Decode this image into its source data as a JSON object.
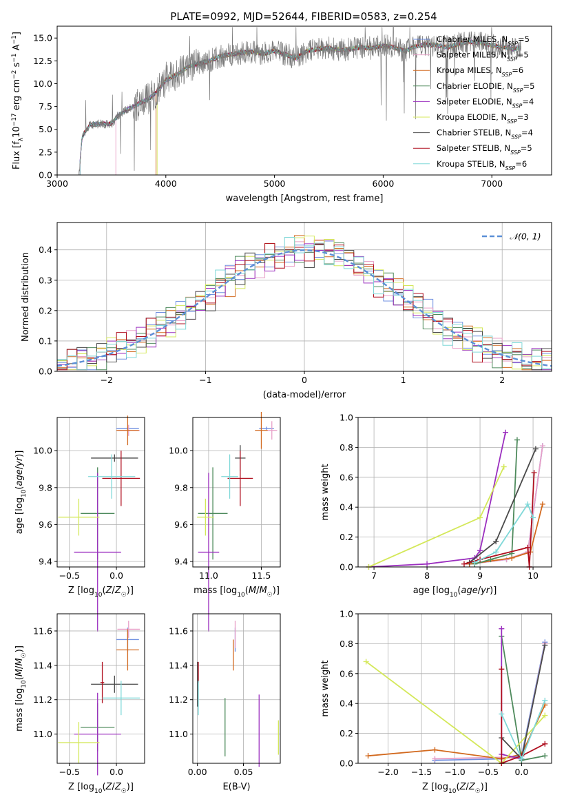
{
  "figure": {
    "title": "PLATE=0992, MJD=52644, FIBERID=0583, z=0.254"
  },
  "series_styles": [
    {
      "name": "Chabrier MILES, N$_{SSP}$=5",
      "color": "#6f8fe0"
    },
    {
      "name": "Salpeter MILES, N$_{SSP}$=5",
      "color": "#e8a0c8"
    },
    {
      "name": "Kroupa MILES, N$_{SSP}$=6",
      "color": "#d2691e"
    },
    {
      "name": "Chabrier ELODIE, N$_{SSP}$=5",
      "color": "#4e8a5c"
    },
    {
      "name": "Salpeter ELODIE, N$_{SSP}$=4",
      "color": "#9b2fbf"
    },
    {
      "name": "Kroupa ELODIE, N$_{SSP}$=3",
      "color": "#d4e85a"
    },
    {
      "name": "Chabrier STELIB, N$_{SSP}$=4",
      "color": "#4a4a4a"
    },
    {
      "name": "Salpeter STELIB, N$_{SSP}$=5",
      "color": "#b01020"
    },
    {
      "name": "Kroupa STELIB, N$_{SSP}$=6",
      "color": "#7fd8d8"
    }
  ],
  "chart_data": [
    {
      "type": "line",
      "title": "PLATE=0992, MJD=52644, FIBERID=0583, z=0.254",
      "xlabel": "wavelength [Angstrom, rest frame]",
      "ylabel": "Flux [f_λ 10^-17 erg cm^-2 s^-1 A^-1]",
      "xlim": [
        3000,
        7550
      ],
      "ylim": [
        0,
        16.3
      ],
      "xticks": [
        "3000",
        "4000",
        "5000",
        "6000",
        "7000"
      ],
      "yticks": [
        "0.0",
        "2.5",
        "5.0",
        "7.5",
        "10.0",
        "12.5",
        "15.0"
      ],
      "legend": "top-right",
      "legend_entries": [
        "Chabrier MILES, N_SSP=5",
        "Salpeter MILES, N_SSP=5",
        "Kroupa MILES, N_SSP=6",
        "Chabrier ELODIE, N_SSP=5",
        "Salpeter ELODIE, N_SSP=4",
        "Kroupa ELODIE, N_SSP=3",
        "Chabrier STELIB, N_SSP=4",
        "Salpeter STELIB, N_SSP=5",
        "Kroupa STELIB, N_SSP=6"
      ],
      "data_x": [
        3200,
        3230,
        3300,
        3400,
        3500,
        3560,
        3650,
        3750,
        3850,
        3950,
        4000,
        4100,
        4200,
        4300,
        4400,
        4500,
        4600,
        4700,
        4800,
        4900,
        5000,
        5100,
        5200,
        5300,
        5400,
        5500,
        5600,
        5700,
        5800,
        5900,
        6000,
        6100,
        6200,
        6300,
        6400,
        6500,
        6600,
        6700,
        6800,
        6900,
        7000,
        7100,
        7200,
        7270
      ],
      "data_y": [
        0,
        4.2,
        5.5,
        5.6,
        5.6,
        6.5,
        7.2,
        7.8,
        8.4,
        9.5,
        10.4,
        11.0,
        11.8,
        12.2,
        12.5,
        13.0,
        13.2,
        13.4,
        13.5,
        13.3,
        13.6,
        13.2,
        12.8,
        13.6,
        13.8,
        13.9,
        13.7,
        13.8,
        14.0,
        13.9,
        14.2,
        14.0,
        13.6,
        14.1,
        14.3,
        14.2,
        14.0,
        14.4,
        14.6,
        14.5,
        14.2,
        14.0,
        13.8,
        14.0
      ],
      "model_starts": [
        3210,
        3540,
        3910,
        3210,
        3210,
        3920,
        3210,
        3210,
        3210
      ]
    },
    {
      "type": "line",
      "xlabel": "(data-model)/error",
      "ylabel": "Normed distribution",
      "xlim": [
        -2.5,
        2.5
      ],
      "ylim": [
        0,
        0.49
      ],
      "xticks": [
        "−2",
        "−1",
        "0",
        "1",
        "2"
      ],
      "yticks": [
        "0.0",
        "0.1",
        "0.2",
        "0.3",
        "0.4"
      ],
      "grid": true,
      "legend": "top-right",
      "legend_entries": [
        "𝒩(0, 1)"
      ],
      "bin_edges_start": -2.5,
      "bin_width": 0.1,
      "histogram_noise": [
        0.02,
        -0.01,
        0.015,
        -0.02,
        0.01,
        0.005,
        -0.015,
        0.02,
        -0.005,
        0.012
      ]
    },
    {
      "type": "scatter",
      "xlabel": "Z [log10(Z/Z☉)]",
      "ylabel": "age  [log10(age/yr)]",
      "xlim": [
        -0.63,
        0.3
      ],
      "ylim": [
        9.37,
        10.18
      ],
      "xticks": [
        "−0.5",
        "0.0"
      ],
      "yticks": [
        "9.4",
        "9.6",
        "9.8",
        "10.0"
      ],
      "points": [
        {
          "series": 0,
          "x": 0.12,
          "y": 10.12,
          "xerr": 0.12,
          "yerr": 0.01
        },
        {
          "series": 1,
          "x": 0.13,
          "y": 10.11,
          "xerr": 0.12,
          "yerr": 0.03
        },
        {
          "series": 2,
          "x": 0.12,
          "y": 10.11,
          "xerr": 0.12,
          "yerr": 0.08
        },
        {
          "series": 3,
          "x": -0.2,
          "y": 9.66,
          "xerr": 0.18,
          "yerr": 0.25
        },
        {
          "series": 4,
          "x": -0.2,
          "y": 9.45,
          "xerr": 0.25,
          "yerr": 0.43
        },
        {
          "series": 5,
          "x": -0.4,
          "y": 9.64,
          "xerr": 0.22,
          "yerr": 0.1
        },
        {
          "series": 6,
          "x": -0.02,
          "y": 9.96,
          "xerr": 0.25,
          "yerr": 0.02
        },
        {
          "series": 7,
          "x": 0.05,
          "y": 9.85,
          "xerr": 0.2,
          "yerr": 0.15
        },
        {
          "series": 8,
          "x": -0.05,
          "y": 9.86,
          "xerr": 0.25,
          "yerr": 0.12
        }
      ]
    },
    {
      "type": "scatter",
      "xlabel": "mass [log10(M/M☉)]",
      "xlim": [
        10.85,
        11.68
      ],
      "ylim": [
        9.37,
        10.18
      ],
      "xticks": [
        "11.0",
        "11.5"
      ],
      "yticks": [
        "9.4",
        "9.6",
        "9.8",
        "10.0"
      ],
      "points": [
        {
          "series": 0,
          "x": 11.55,
          "y": 10.12,
          "xerr": 0.07,
          "yerr": 0.01
        },
        {
          "series": 1,
          "x": 11.6,
          "y": 10.11,
          "xerr": 0.05,
          "yerr": 0.05
        },
        {
          "series": 2,
          "x": 11.5,
          "y": 10.11,
          "xerr": 0.06,
          "yerr": 0.1
        },
        {
          "series": 3,
          "x": 11.04,
          "y": 9.66,
          "xerr": 0.14,
          "yerr": 0.25
        },
        {
          "series": 4,
          "x": 11.0,
          "y": 9.45,
          "xerr": 0.1,
          "yerr": 0.43
        },
        {
          "series": 5,
          "x": 10.97,
          "y": 9.64,
          "xerr": 0.08,
          "yerr": 0.1
        },
        {
          "series": 6,
          "x": 11.3,
          "y": 9.96,
          "xerr": 0.05,
          "yerr": 0.07
        },
        {
          "series": 7,
          "x": 11.3,
          "y": 9.85,
          "xerr": 0.12,
          "yerr": 0.15
        },
        {
          "series": 8,
          "x": 11.2,
          "y": 9.86,
          "xerr": 0.08,
          "yerr": 0.12
        }
      ]
    },
    {
      "type": "line",
      "xlabel": "age  [log10(age/yr)]",
      "ylabel": "mass weight",
      "xlim": [
        6.7,
        10.35
      ],
      "ylim": [
        0,
        1.0
      ],
      "xticks": [
        "7",
        "8",
        "9",
        "10"
      ],
      "yticks": [
        "0.0",
        "0.2",
        "0.4",
        "0.6",
        "0.8",
        "1.0"
      ],
      "grid": true,
      "series": [
        {
          "series": 0,
          "x": [
            8.8,
            9.5,
            9.9,
            10.18
          ],
          "y": [
            0.02,
            0.05,
            0.1,
            0.81
          ]
        },
        {
          "series": 1,
          "x": [
            8.8,
            9.5,
            9.9,
            10.18
          ],
          "y": [
            0.02,
            0.05,
            0.1,
            0.81
          ]
        },
        {
          "series": 2,
          "x": [
            8.8,
            9.6,
            9.95,
            10.18
          ],
          "y": [
            0.02,
            0.06,
            0.1,
            0.42
          ]
        },
        {
          "series": 3,
          "x": [
            8.9,
            9.2,
            9.6,
            9.7
          ],
          "y": [
            0.02,
            0.05,
            0.09,
            0.85
          ]
        },
        {
          "series": 4,
          "x": [
            6.9,
            8.0,
            8.9,
            9.0,
            9.48
          ],
          "y": [
            0.0,
            0.02,
            0.06,
            0.11,
            0.9
          ]
        },
        {
          "series": 5,
          "x": [
            6.9,
            9.0,
            9.45
          ],
          "y": [
            0.0,
            0.33,
            0.67
          ]
        },
        {
          "series": 6,
          "x": [
            8.8,
            9.3,
            10.05
          ],
          "y": [
            0.03,
            0.17,
            0.79
          ]
        },
        {
          "series": 7,
          "x": [
            8.7,
            9.0,
            9.9,
            9.93,
            10.02
          ],
          "y": [
            0.02,
            0.05,
            0.13,
            0.0,
            0.63
          ]
        },
        {
          "series": 8,
          "x": [
            8.9,
            9.3,
            9.9,
            10.0
          ],
          "y": [
            0.03,
            0.1,
            0.42,
            0.33
          ]
        }
      ]
    },
    {
      "type": "scatter",
      "xlabel": "Z [log10(Z/Z☉)]",
      "ylabel": "mass [log10(M/M☉)]",
      "xlim": [
        -0.63,
        0.3
      ],
      "ylim": [
        10.83,
        11.7
      ],
      "xticks": [
        "−0.5",
        "0.0"
      ],
      "yticks": [
        "11.0",
        "11.2",
        "11.4",
        "11.6"
      ],
      "points": [
        {
          "series": 0,
          "x": 0.12,
          "y": 11.55,
          "xerr": 0.12,
          "yerr": 0.07
        },
        {
          "series": 1,
          "x": 0.13,
          "y": 11.61,
          "xerr": 0.12,
          "yerr": 0.05
        },
        {
          "series": 2,
          "x": 0.12,
          "y": 11.49,
          "xerr": 0.12,
          "yerr": 0.12
        },
        {
          "series": 3,
          "x": -0.2,
          "y": 11.04,
          "xerr": 0.18,
          "yerr": 0.14
        },
        {
          "series": 4,
          "x": -0.2,
          "y": 11.0,
          "xerr": 0.25,
          "yerr": 0.24
        },
        {
          "series": 5,
          "x": -0.4,
          "y": 10.95,
          "xerr": 0.22,
          "yerr": 0.12
        },
        {
          "series": 6,
          "x": -0.02,
          "y": 11.29,
          "xerr": 0.25,
          "yerr": 0.05
        },
        {
          "series": 7,
          "x": -0.15,
          "y": 11.3,
          "xerr": 0.02,
          "yerr": 0.12
        },
        {
          "series": 8,
          "x": 0.05,
          "y": 11.21,
          "xerr": 0.2,
          "yerr": 0.1
        }
      ]
    },
    {
      "type": "scatter",
      "xlabel": "E(B-V)",
      "xlim": [
        -0.005,
        0.09
      ],
      "ylim": [
        10.83,
        11.7
      ],
      "xticks": [
        "0.00",
        "0.05"
      ],
      "yticks": [
        "11.0",
        "11.2",
        "11.4",
        "11.6"
      ],
      "points": [
        {
          "series": 0,
          "x": 0.041,
          "y": 11.55,
          "xerr": 0.0,
          "yerr": 0.07
        },
        {
          "series": 1,
          "x": 0.041,
          "y": 11.58,
          "xerr": 0.0,
          "yerr": 0.08
        },
        {
          "series": 2,
          "x": 0.039,
          "y": 11.46,
          "xerr": 0.0,
          "yerr": 0.09
        },
        {
          "series": 3,
          "x": 0.03,
          "y": 11.04,
          "xerr": 0.0,
          "yerr": 0.17
        },
        {
          "series": 4,
          "x": 0.067,
          "y": 11.02,
          "xerr": 0.0,
          "yerr": 0.21
        },
        {
          "series": 5,
          "x": 0.088,
          "y": 10.98,
          "xerr": 0.0,
          "yerr": 0.1
        },
        {
          "series": 6,
          "x": 0.0,
          "y": 11.29,
          "xerr": 0.0,
          "yerr": 0.13
        },
        {
          "series": 7,
          "x": 0.001,
          "y": 11.36,
          "xerr": 0.0,
          "yerr": 0.06
        },
        {
          "series": 8,
          "x": 0.001,
          "y": 11.21,
          "xerr": 0.0,
          "yerr": 0.1
        }
      ]
    },
    {
      "type": "line",
      "xlabel": "Z [log10(Z/Z☉)]",
      "ylabel": "mass weight",
      "xlim": [
        -2.45,
        0.45
      ],
      "ylim": [
        0,
        1.0
      ],
      "xticks": [
        "−2.0",
        "−1.5",
        "−1.0",
        "−0.5",
        "0.0"
      ],
      "yticks": [
        "0.0",
        "0.2",
        "0.4",
        "0.6",
        "0.8",
        "1.0"
      ],
      "grid": true,
      "series": [
        {
          "series": 0,
          "x": [
            -1.3,
            -0.3,
            0.0,
            0.35
          ],
          "y": [
            0.02,
            0.03,
            0.05,
            0.81
          ]
        },
        {
          "series": 1,
          "x": [
            -1.3,
            -0.3,
            0.0,
            0.35
          ],
          "y": [
            0.03,
            0.04,
            0.03,
            0.8
          ]
        },
        {
          "series": 2,
          "x": [
            -2.3,
            -1.3,
            -0.3,
            0.0,
            0.35
          ],
          "y": [
            0.05,
            0.09,
            0.03,
            0.06,
            0.39
          ]
        },
        {
          "series": 3,
          "x": [
            -0.3,
            0.0,
            0.35
          ],
          "y": [
            0.85,
            0.02,
            0.05
          ]
        },
        {
          "series": 4,
          "x": [
            -0.3,
            -0.3,
            0.0
          ],
          "y": [
            0.9,
            0.06,
            0.03
          ]
        },
        {
          "series": 5,
          "x": [
            -2.33,
            -0.3,
            0.35
          ],
          "y": [
            0.68,
            0.0,
            0.32
          ]
        },
        {
          "series": 6,
          "x": [
            -0.3,
            0.0,
            0.35
          ],
          "y": [
            0.17,
            0.03,
            0.79
          ]
        },
        {
          "series": 7,
          "x": [
            -0.3,
            -0.3,
            0.0,
            0.35
          ],
          "y": [
            0.63,
            0.0,
            0.05,
            0.13
          ]
        },
        {
          "series": 8,
          "x": [
            -0.3,
            0.0,
            0.35
          ],
          "y": [
            0.33,
            0.03,
            0.42
          ]
        }
      ]
    }
  ]
}
